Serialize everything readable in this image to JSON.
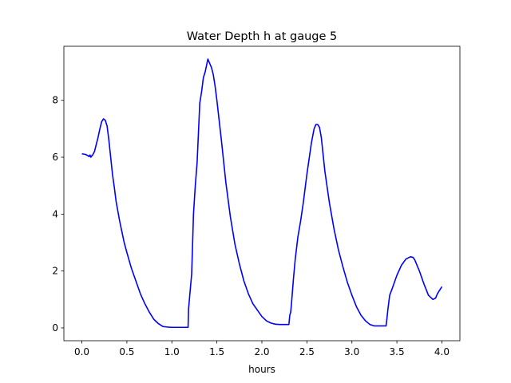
{
  "chart_data": {
    "type": "line",
    "title": "Water Depth h at gauge 5",
    "xlabel": "hours",
    "ylabel": "",
    "xlim": [
      -0.2,
      4.2
    ],
    "ylim": [
      -0.45,
      9.9
    ],
    "xticks": [
      0.0,
      0.5,
      1.0,
      1.5,
      2.0,
      2.5,
      3.0,
      3.5,
      4.0
    ],
    "xtick_labels": [
      "0.0",
      "0.5",
      "1.0",
      "1.5",
      "2.0",
      "2.5",
      "3.0",
      "3.5",
      "4.0"
    ],
    "yticks": [
      0,
      2,
      4,
      6,
      8
    ],
    "ytick_labels": [
      "0",
      "2",
      "4",
      "6",
      "8"
    ],
    "grid": false,
    "series": [
      {
        "name": "",
        "color": "#0000ff",
        "x": [
          0.0,
          0.04,
          0.07,
          0.08,
          0.09,
          0.1,
          0.11,
          0.12,
          0.14,
          0.16,
          0.18,
          0.2,
          0.22,
          0.24,
          0.26,
          0.28,
          0.3,
          0.32,
          0.34,
          0.36,
          0.38,
          0.4,
          0.42,
          0.44,
          0.47,
          0.5,
          0.55,
          0.6,
          0.65,
          0.7,
          0.75,
          0.8,
          0.85,
          0.9,
          0.95,
          1.0,
          1.05,
          1.1,
          1.15,
          1.18,
          1.185,
          1.2,
          1.22,
          1.24,
          1.26,
          1.28,
          1.3,
          1.31,
          1.33,
          1.35,
          1.37,
          1.4,
          1.42,
          1.44,
          1.46,
          1.48,
          1.5,
          1.55,
          1.6,
          1.65,
          1.7,
          1.75,
          1.8,
          1.85,
          1.9,
          2.0,
          2.05,
          2.1,
          2.15,
          2.2,
          2.25,
          2.3,
          2.31,
          2.32,
          2.33,
          2.35,
          2.37,
          2.4,
          2.43,
          2.46,
          2.5,
          2.55,
          2.58,
          2.6,
          2.62,
          2.64,
          2.66,
          2.68,
          2.7,
          2.75,
          2.8,
          2.85,
          2.9,
          2.95,
          3.0,
          3.05,
          3.1,
          3.15,
          3.2,
          3.25,
          3.3,
          3.35,
          3.38,
          3.39,
          3.4,
          3.42,
          3.45,
          3.5,
          3.55,
          3.6,
          3.65,
          3.68,
          3.7,
          3.75,
          3.8,
          3.85,
          3.9,
          3.93,
          3.95,
          3.97,
          3.98,
          4.0
        ],
        "y": [
          6.12,
          6.1,
          6.05,
          6.02,
          6.08,
          6.0,
          6.05,
          6.08,
          6.2,
          6.45,
          6.7,
          7.0,
          7.25,
          7.35,
          7.3,
          7.1,
          6.6,
          6.0,
          5.4,
          4.95,
          4.45,
          4.1,
          3.75,
          3.45,
          3.0,
          2.65,
          2.1,
          1.65,
          1.2,
          0.85,
          0.55,
          0.3,
          0.15,
          0.05,
          0.03,
          0.02,
          0.02,
          0.02,
          0.02,
          0.02,
          0.65,
          1.2,
          1.9,
          4.0,
          5.0,
          5.8,
          7.2,
          7.9,
          8.3,
          8.8,
          9.0,
          9.45,
          9.3,
          9.15,
          8.9,
          8.5,
          8.0,
          6.6,
          5.1,
          3.9,
          2.95,
          2.25,
          1.65,
          1.2,
          0.85,
          0.4,
          0.25,
          0.17,
          0.13,
          0.12,
          0.12,
          0.12,
          0.45,
          0.55,
          0.9,
          1.7,
          2.4,
          3.2,
          3.75,
          4.4,
          5.4,
          6.5,
          7.0,
          7.15,
          7.15,
          7.05,
          6.7,
          6.1,
          5.5,
          4.4,
          3.5,
          2.75,
          2.15,
          1.6,
          1.15,
          0.75,
          0.45,
          0.25,
          0.12,
          0.07,
          0.07,
          0.07,
          0.07,
          0.35,
          0.65,
          1.15,
          1.4,
          1.85,
          2.2,
          2.42,
          2.5,
          2.48,
          2.38,
          2.0,
          1.55,
          1.15,
          1.0,
          1.05,
          1.2,
          1.3,
          1.35,
          1.45
        ]
      }
    ]
  }
}
